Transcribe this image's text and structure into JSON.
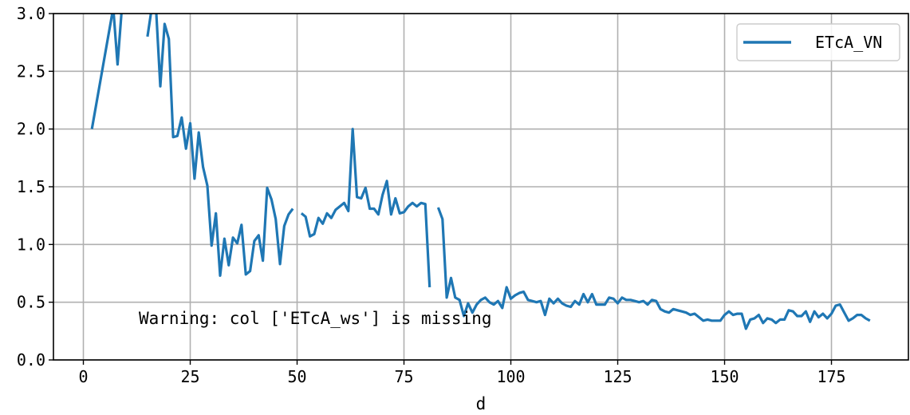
{
  "chart_data": {
    "type": "line",
    "xlabel": "d",
    "ylabel": "",
    "title": "",
    "xlim": [
      -7,
      193
    ],
    "ylim": [
      0,
      3.0
    ],
    "xticks": [
      0,
      25,
      50,
      75,
      100,
      125,
      150,
      175
    ],
    "yticks": [
      0.0,
      0.5,
      1.0,
      1.5,
      2.0,
      2.5,
      3.0
    ],
    "xtick_labels": [
      "0",
      "25",
      "50",
      "75",
      "100",
      "125",
      "150",
      "175"
    ],
    "ytick_labels": [
      "0.0",
      "0.5",
      "1.0",
      "1.5",
      "2.0",
      "2.5",
      "3.0"
    ],
    "grid": true,
    "legend": {
      "placement": "top-right",
      "entries": [
        "ETcA_VN"
      ]
    },
    "annotation": "Warning: col ['ETcA_ws'] is missing",
    "series": [
      {
        "name": "ETcA_VN",
        "color": "#1f77b4",
        "segments": [
          [
            [
              2,
              2.0
            ],
            [
              7,
              3.05
            ],
            [
              8,
              2.56
            ],
            [
              9,
              3.05
            ]
          ],
          [
            [
              15,
              2.8
            ],
            [
              16,
              3.05
            ],
            [
              17,
              3.05
            ],
            [
              18,
              2.37
            ],
            [
              19,
              2.91
            ],
            [
              20,
              2.78
            ],
            [
              21,
              1.93
            ],
            [
              22,
              1.94
            ],
            [
              23,
              2.1
            ],
            [
              24,
              1.83
            ],
            [
              25,
              2.05
            ],
            [
              26,
              1.57
            ],
            [
              27,
              1.97
            ],
            [
              28,
              1.67
            ],
            [
              29,
              1.51
            ],
            [
              30,
              0.99
            ],
            [
              31,
              1.27
            ],
            [
              32,
              0.73
            ],
            [
              33,
              1.05
            ],
            [
              34,
              0.82
            ],
            [
              35,
              1.06
            ],
            [
              36,
              1.01
            ],
            [
              37,
              1.17
            ],
            [
              38,
              0.74
            ],
            [
              39,
              0.77
            ],
            [
              40,
              1.03
            ],
            [
              41,
              1.08
            ],
            [
              42,
              0.86
            ],
            [
              43,
              1.49
            ],
            [
              44,
              1.39
            ],
            [
              45,
              1.22
            ],
            [
              46,
              0.83
            ],
            [
              47,
              1.16
            ],
            [
              48,
              1.26
            ],
            [
              49,
              1.31
            ]
          ],
          [
            [
              51,
              1.27
            ],
            [
              52,
              1.24
            ],
            [
              53,
              1.07
            ],
            [
              54,
              1.09
            ],
            [
              55,
              1.23
            ],
            [
              56,
              1.18
            ],
            [
              57,
              1.27
            ],
            [
              58,
              1.23
            ],
            [
              59,
              1.3
            ],
            [
              60,
              1.33
            ],
            [
              61,
              1.36
            ],
            [
              62,
              1.29
            ],
            [
              63,
              2.0
            ],
            [
              64,
              1.41
            ],
            [
              65,
              1.4
            ],
            [
              66,
              1.49
            ],
            [
              67,
              1.31
            ],
            [
              68,
              1.31
            ],
            [
              69,
              1.26
            ],
            [
              70,
              1.43
            ],
            [
              71,
              1.55
            ],
            [
              72,
              1.26
            ],
            [
              73,
              1.4
            ],
            [
              74,
              1.27
            ],
            [
              75,
              1.28
            ],
            [
              76,
              1.33
            ],
            [
              77,
              1.36
            ],
            [
              78,
              1.33
            ],
            [
              79,
              1.36
            ],
            [
              80,
              1.35
            ],
            [
              81,
              0.63
            ]
          ],
          [
            [
              83,
              1.32
            ],
            [
              84,
              1.22
            ],
            [
              85,
              0.54
            ],
            [
              86,
              0.71
            ],
            [
              87,
              0.54
            ],
            [
              88,
              0.52
            ],
            [
              89,
              0.38
            ],
            [
              90,
              0.49
            ],
            [
              91,
              0.41
            ],
            [
              92,
              0.48
            ],
            [
              93,
              0.52
            ],
            [
              94,
              0.54
            ],
            [
              95,
              0.5
            ],
            [
              96,
              0.48
            ],
            [
              97,
              0.51
            ],
            [
              98,
              0.45
            ],
            [
              99,
              0.63
            ],
            [
              100,
              0.53
            ],
            [
              101,
              0.56
            ],
            [
              102,
              0.58
            ],
            [
              103,
              0.59
            ],
            [
              104,
              0.52
            ],
            [
              105,
              0.51
            ],
            [
              106,
              0.5
            ],
            [
              107,
              0.51
            ],
            [
              108,
              0.39
            ],
            [
              109,
              0.53
            ],
            [
              110,
              0.49
            ],
            [
              111,
              0.53
            ],
            [
              112,
              0.49
            ],
            [
              113,
              0.47
            ],
            [
              114,
              0.46
            ],
            [
              115,
              0.51
            ],
            [
              116,
              0.48
            ],
            [
              117,
              0.57
            ],
            [
              118,
              0.5
            ],
            [
              119,
              0.57
            ],
            [
              120,
              0.48
            ],
            [
              121,
              0.48
            ],
            [
              122,
              0.48
            ],
            [
              123,
              0.54
            ],
            [
              124,
              0.53
            ],
            [
              125,
              0.49
            ],
            [
              126,
              0.54
            ],
            [
              127,
              0.52
            ],
            [
              128,
              0.52
            ],
            [
              129,
              0.51
            ],
            [
              130,
              0.5
            ],
            [
              131,
              0.51
            ],
            [
              132,
              0.48
            ],
            [
              133,
              0.52
            ],
            [
              134,
              0.51
            ],
            [
              135,
              0.44
            ],
            [
              136,
              0.42
            ],
            [
              137,
              0.41
            ],
            [
              138,
              0.44
            ],
            [
              139,
              0.43
            ],
            [
              140,
              0.42
            ],
            [
              141,
              0.41
            ],
            [
              142,
              0.39
            ],
            [
              143,
              0.4
            ],
            [
              144,
              0.37
            ],
            [
              145,
              0.34
            ],
            [
              146,
              0.35
            ],
            [
              147,
              0.34
            ],
            [
              148,
              0.34
            ],
            [
              149,
              0.34
            ],
            [
              150,
              0.39
            ],
            [
              151,
              0.42
            ],
            [
              152,
              0.39
            ],
            [
              153,
              0.4
            ],
            [
              154,
              0.4
            ],
            [
              155,
              0.27
            ],
            [
              156,
              0.35
            ],
            [
              157,
              0.36
            ],
            [
              158,
              0.39
            ],
            [
              159,
              0.32
            ],
            [
              160,
              0.36
            ],
            [
              161,
              0.35
            ],
            [
              162,
              0.32
            ],
            [
              163,
              0.35
            ],
            [
              164,
              0.35
            ],
            [
              165,
              0.43
            ],
            [
              166,
              0.42
            ],
            [
              167,
              0.38
            ],
            [
              168,
              0.38
            ],
            [
              169,
              0.42
            ],
            [
              170,
              0.33
            ],
            [
              171,
              0.42
            ],
            [
              172,
              0.37
            ],
            [
              173,
              0.4
            ],
            [
              174,
              0.36
            ],
            [
              175,
              0.4
            ],
            [
              176,
              0.47
            ],
            [
              177,
              0.48
            ],
            [
              178,
              0.41
            ],
            [
              179,
              0.34
            ],
            [
              180,
              0.36
            ],
            [
              181,
              0.39
            ],
            [
              182,
              0.39
            ],
            [
              183,
              0.36
            ],
            [
              184,
              0.34
            ]
          ]
        ]
      }
    ]
  }
}
